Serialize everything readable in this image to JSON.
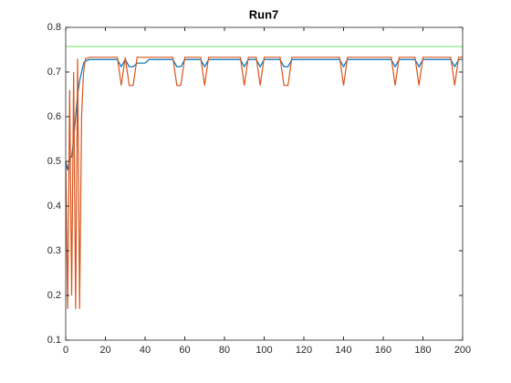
{
  "chart_data": {
    "type": "line",
    "title": "Run7",
    "x": [
      0,
      1,
      2,
      3,
      4,
      5,
      6,
      7,
      8,
      9,
      10,
      12,
      14,
      16,
      18,
      20,
      22,
      24,
      26,
      28,
      30,
      32,
      34,
      36,
      38,
      40,
      42,
      44,
      46,
      48,
      50,
      52,
      54,
      56,
      58,
      60,
      62,
      64,
      66,
      68,
      70,
      72,
      74,
      76,
      78,
      80,
      82,
      84,
      86,
      88,
      90,
      92,
      94,
      96,
      98,
      100,
      102,
      104,
      106,
      108,
      110,
      112,
      114,
      116,
      118,
      120,
      122,
      124,
      126,
      128,
      130,
      132,
      134,
      136,
      138,
      140,
      142,
      144,
      146,
      148,
      150,
      152,
      154,
      156,
      158,
      160,
      162,
      164,
      166,
      168,
      170,
      172,
      174,
      176,
      178,
      180,
      182,
      184,
      186,
      188,
      190,
      192,
      194,
      196,
      198,
      200
    ],
    "series": [
      {
        "color": "#0072bd",
        "values": [
          0.5,
          0.48,
          0.51,
          0.51,
          0.55,
          0.6,
          0.65,
          0.68,
          0.7,
          0.72,
          0.725,
          0.728,
          0.728,
          0.728,
          0.728,
          0.728,
          0.728,
          0.728,
          0.728,
          0.712,
          0.728,
          0.712,
          0.712,
          0.72,
          0.72,
          0.72,
          0.728,
          0.728,
          0.728,
          0.728,
          0.728,
          0.728,
          0.728,
          0.712,
          0.712,
          0.728,
          0.728,
          0.728,
          0.728,
          0.728,
          0.712,
          0.728,
          0.728,
          0.728,
          0.728,
          0.728,
          0.728,
          0.728,
          0.728,
          0.728,
          0.712,
          0.728,
          0.728,
          0.728,
          0.712,
          0.728,
          0.728,
          0.728,
          0.728,
          0.728,
          0.712,
          0.712,
          0.728,
          0.728,
          0.728,
          0.728,
          0.728,
          0.728,
          0.728,
          0.728,
          0.728,
          0.728,
          0.728,
          0.728,
          0.728,
          0.712,
          0.728,
          0.728,
          0.728,
          0.728,
          0.728,
          0.728,
          0.728,
          0.728,
          0.728,
          0.728,
          0.728,
          0.728,
          0.712,
          0.728,
          0.728,
          0.728,
          0.728,
          0.728,
          0.712,
          0.728,
          0.728,
          0.728,
          0.728,
          0.728,
          0.728,
          0.728,
          0.728,
          0.712,
          0.728,
          0.728
        ]
      },
      {
        "color": "#d95319",
        "values": [
          0.5,
          0.17,
          0.66,
          0.2,
          0.7,
          0.17,
          0.73,
          0.17,
          0.6,
          0.7,
          0.73,
          0.733,
          0.733,
          0.733,
          0.733,
          0.733,
          0.733,
          0.733,
          0.733,
          0.67,
          0.733,
          0.67,
          0.67,
          0.733,
          0.733,
          0.733,
          0.733,
          0.733,
          0.733,
          0.733,
          0.733,
          0.733,
          0.733,
          0.67,
          0.67,
          0.733,
          0.733,
          0.733,
          0.733,
          0.733,
          0.67,
          0.733,
          0.733,
          0.733,
          0.733,
          0.733,
          0.733,
          0.733,
          0.733,
          0.733,
          0.67,
          0.733,
          0.733,
          0.733,
          0.67,
          0.733,
          0.733,
          0.733,
          0.733,
          0.733,
          0.67,
          0.67,
          0.733,
          0.733,
          0.733,
          0.733,
          0.733,
          0.733,
          0.733,
          0.733,
          0.733,
          0.733,
          0.733,
          0.733,
          0.733,
          0.67,
          0.733,
          0.733,
          0.733,
          0.733,
          0.733,
          0.733,
          0.733,
          0.733,
          0.733,
          0.733,
          0.733,
          0.733,
          0.67,
          0.733,
          0.733,
          0.733,
          0.733,
          0.733,
          0.67,
          0.733,
          0.733,
          0.733,
          0.733,
          0.733,
          0.733,
          0.733,
          0.733,
          0.67,
          0.733,
          0.733
        ]
      },
      {
        "color": "#77e777",
        "values": [
          0.757,
          0.757,
          0.757,
          0.757,
          0.757,
          0.757,
          0.757,
          0.757,
          0.757,
          0.757,
          0.757,
          0.757,
          0.757,
          0.757,
          0.757,
          0.757,
          0.757,
          0.757,
          0.757,
          0.757,
          0.757,
          0.757,
          0.757,
          0.757,
          0.757,
          0.757,
          0.757,
          0.757,
          0.757,
          0.757,
          0.757,
          0.757,
          0.757,
          0.757,
          0.757,
          0.757,
          0.757,
          0.757,
          0.757,
          0.757,
          0.757,
          0.757,
          0.757,
          0.757,
          0.757,
          0.757,
          0.757,
          0.757,
          0.757,
          0.757,
          0.757,
          0.757,
          0.757,
          0.757,
          0.757,
          0.757,
          0.757,
          0.757,
          0.757,
          0.757,
          0.757,
          0.757,
          0.757,
          0.757,
          0.757,
          0.757,
          0.757,
          0.757,
          0.757,
          0.757,
          0.757,
          0.757,
          0.757,
          0.757,
          0.757,
          0.757,
          0.757,
          0.757,
          0.757,
          0.757,
          0.757,
          0.757,
          0.757,
          0.757,
          0.757,
          0.757,
          0.757,
          0.757,
          0.757,
          0.757,
          0.757,
          0.757,
          0.757,
          0.757,
          0.757,
          0.757,
          0.757,
          0.757,
          0.757,
          0.757,
          0.757,
          0.757,
          0.757,
          0.757,
          0.757,
          0.757
        ]
      }
    ],
    "xlim": [
      0,
      200
    ],
    "xticks": [
      0,
      20,
      40,
      60,
      80,
      100,
      120,
      140,
      160,
      180,
      200
    ],
    "ylim": [
      0.1,
      0.8
    ],
    "yticks": [
      0.1,
      0.2,
      0.3,
      0.4,
      0.5,
      0.6,
      0.7,
      0.8
    ]
  }
}
